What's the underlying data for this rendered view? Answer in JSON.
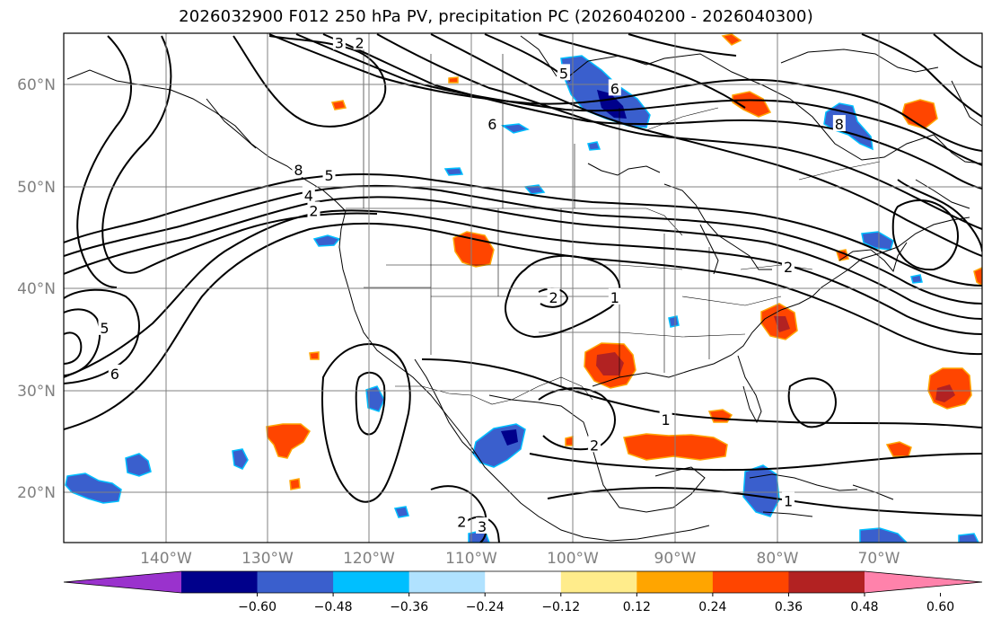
{
  "title": "2026032900 F012 250 hPa PV, precipitation PC (2026040200 - 2026040300)",
  "map": {
    "lon_range": [
      -150,
      -60
    ],
    "lat_range": [
      15,
      65
    ],
    "lat_labels": [
      "20°N",
      "30°N",
      "40°N",
      "50°N",
      "60°N"
    ],
    "lon_labels": [
      "140°W",
      "130°W",
      "120°W",
      "110°W",
      "100°W",
      "90°W",
      "80°W",
      "70°W"
    ]
  },
  "colorbar": {
    "tick_labels": [
      "−0.60",
      "−0.48",
      "−0.36",
      "−0.24",
      "−0.12",
      "0.12",
      "0.24",
      "0.36",
      "0.48",
      "0.60"
    ],
    "colors": [
      "#9a32cd",
      "#00008b",
      "#3a5fcd",
      "#00bfff",
      "#b0e2ff",
      "#ffffff",
      "#ffec8b",
      "#ffa500",
      "#ff4500",
      "#b22222",
      "#ff82ab"
    ]
  },
  "contour_labels": [
    {
      "text": "5",
      "lon": -146,
      "lat": 36
    },
    {
      "text": "6",
      "lon": -145,
      "lat": 31.5
    },
    {
      "text": "8",
      "lon": -127,
      "lat": 51.5
    },
    {
      "text": "4",
      "lon": -126,
      "lat": 49
    },
    {
      "text": "5",
      "lon": -124,
      "lat": 51
    },
    {
      "text": "2",
      "lon": -125.5,
      "lat": 47.5
    },
    {
      "text": "6",
      "lon": -108,
      "lat": 56
    },
    {
      "text": "5",
      "lon": -101,
      "lat": 61
    },
    {
      "text": "6",
      "lon": -96,
      "lat": 59.5
    },
    {
      "text": "3",
      "lon": -123,
      "lat": 64
    },
    {
      "text": "2",
      "lon": -121,
      "lat": 64
    },
    {
      "text": "2",
      "lon": -102,
      "lat": 39
    },
    {
      "text": "1",
      "lon": -96,
      "lat": 39
    },
    {
      "text": "1",
      "lon": -91,
      "lat": 27
    },
    {
      "text": "2",
      "lon": -98,
      "lat": 24.5
    },
    {
      "text": "1",
      "lon": -79,
      "lat": 19
    },
    {
      "text": "2",
      "lon": -111,
      "lat": 17
    },
    {
      "text": "3",
      "lon": -109,
      "lat": 16.5
    },
    {
      "text": "8",
      "lon": -74,
      "lat": 56
    },
    {
      "text": "2",
      "lon": -79,
      "lat": 42
    }
  ]
}
